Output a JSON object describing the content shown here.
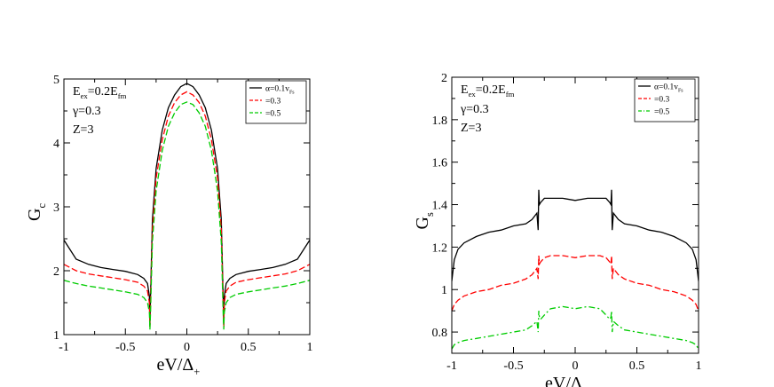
{
  "chart_data": [
    {
      "type": "line",
      "ylabel": "G",
      "ylabel_sub": "c",
      "xlabel": "eV/Δ",
      "xlabel_sub": "+",
      "xlim": [
        -1,
        1
      ],
      "ylim": [
        1,
        5
      ],
      "xticks": [
        -1,
        -0.5,
        0,
        0.5,
        1
      ],
      "xtick_labels": [
        "-1",
        "-0.5",
        "0",
        "0.5",
        "1"
      ],
      "yticks": [
        1,
        2,
        3,
        4,
        5
      ],
      "ytick_labels": [
        "1",
        "2",
        "3",
        "4",
        "5"
      ],
      "params": {
        "line1": {
          "main": "E",
          "sub": "ex",
          "rest": "=0.2E",
          "sub2": "fm"
        },
        "line2": "γ=0.3",
        "line3": "Z=3"
      },
      "legend_position": "top-right",
      "series": [
        {
          "name": "α=0.1v",
          "name_sub": "Fs",
          "color": "#000000",
          "dash": "solid",
          "x": [
            -1,
            -0.9,
            -0.8,
            -0.7,
            -0.6,
            -0.5,
            -0.4,
            -0.35,
            -0.32,
            -0.305,
            -0.3,
            -0.295,
            -0.28,
            -0.25,
            -0.2,
            -0.15,
            -0.1,
            -0.05,
            0,
            0.05,
            0.1,
            0.15,
            0.2,
            0.25,
            0.28,
            0.295,
            0.3,
            0.305,
            0.32,
            0.35,
            0.4,
            0.5,
            0.6,
            0.7,
            0.8,
            0.9,
            1
          ],
          "y": [
            2.48,
            2.18,
            2.1,
            2.05,
            2.02,
            1.99,
            1.94,
            1.88,
            1.8,
            1.6,
            1.15,
            1.6,
            2.8,
            3.6,
            4.2,
            4.55,
            4.75,
            4.88,
            4.93,
            4.88,
            4.75,
            4.55,
            4.2,
            3.6,
            2.8,
            1.6,
            1.15,
            1.6,
            1.8,
            1.88,
            1.94,
            1.99,
            2.02,
            2.05,
            2.1,
            2.18,
            2.48
          ]
        },
        {
          "name": "=0.3",
          "color": "#ff0000",
          "dash": "dashed",
          "x": [
            -1,
            -0.9,
            -0.8,
            -0.7,
            -0.6,
            -0.5,
            -0.4,
            -0.35,
            -0.32,
            -0.305,
            -0.3,
            -0.295,
            -0.28,
            -0.25,
            -0.2,
            -0.15,
            -0.1,
            -0.05,
            0,
            0.05,
            0.1,
            0.15,
            0.2,
            0.25,
            0.28,
            0.295,
            0.3,
            0.305,
            0.32,
            0.35,
            0.4,
            0.5,
            0.6,
            0.7,
            0.8,
            0.9,
            1
          ],
          "y": [
            2.1,
            2.0,
            1.95,
            1.92,
            1.89,
            1.86,
            1.82,
            1.76,
            1.68,
            1.5,
            1.12,
            1.5,
            2.65,
            3.45,
            4.05,
            4.42,
            4.63,
            4.75,
            4.8,
            4.75,
            4.63,
            4.42,
            4.05,
            3.45,
            2.65,
            1.5,
            1.12,
            1.5,
            1.68,
            1.76,
            1.82,
            1.86,
            1.89,
            1.92,
            1.95,
            2.0,
            2.1
          ]
        },
        {
          "name": "=0.5",
          "color": "#00cc00",
          "dash": "dashed",
          "x": [
            -1,
            -0.9,
            -0.8,
            -0.7,
            -0.6,
            -0.5,
            -0.4,
            -0.35,
            -0.32,
            -0.305,
            -0.3,
            -0.295,
            -0.28,
            -0.25,
            -0.2,
            -0.15,
            -0.1,
            -0.05,
            0,
            0.05,
            0.1,
            0.15,
            0.2,
            0.25,
            0.28,
            0.295,
            0.3,
            0.305,
            0.32,
            0.35,
            0.4,
            0.5,
            0.6,
            0.7,
            0.8,
            0.9,
            1
          ],
          "y": [
            1.85,
            1.8,
            1.76,
            1.73,
            1.7,
            1.67,
            1.63,
            1.58,
            1.5,
            1.35,
            1.08,
            1.35,
            2.45,
            3.25,
            3.88,
            4.26,
            4.47,
            4.6,
            4.64,
            4.6,
            4.47,
            4.26,
            3.88,
            3.25,
            2.45,
            1.35,
            1.08,
            1.35,
            1.5,
            1.58,
            1.63,
            1.67,
            1.7,
            1.73,
            1.76,
            1.8,
            1.85
          ]
        }
      ]
    },
    {
      "type": "line",
      "ylabel": "G",
      "ylabel_sub": "s",
      "xlabel": "eV/Δ",
      "xlabel_sub": "+",
      "xlim": [
        -1,
        1
      ],
      "ylim": [
        0.7,
        2
      ],
      "xticks": [
        -1,
        -0.5,
        0,
        0.5,
        1
      ],
      "xtick_labels": [
        "-1",
        "-0.5",
        "0",
        "0.5",
        "1"
      ],
      "yticks": [
        0.8,
        1,
        1.2,
        1.4,
        1.6,
        1.8,
        2
      ],
      "ytick_labels": [
        "0.8",
        "1",
        "1.2",
        "1.4",
        "1.6",
        "1.8",
        "2"
      ],
      "params": {
        "line1": {
          "main": "E",
          "sub": "ex",
          "rest": "=0.2E",
          "sub2": "fm"
        },
        "line2": "γ=0.3",
        "line3": "Z=3"
      },
      "legend_position": "top-right",
      "series": [
        {
          "name": "α=0.1v",
          "name_sub": "Fs",
          "color": "#000000",
          "dash": "solid",
          "x": [
            -1,
            -0.98,
            -0.95,
            -0.9,
            -0.8,
            -0.7,
            -0.6,
            -0.5,
            -0.4,
            -0.35,
            -0.31,
            -0.3,
            -0.295,
            -0.29,
            -0.28,
            -0.25,
            -0.2,
            -0.1,
            0,
            0.1,
            0.2,
            0.25,
            0.28,
            0.29,
            0.295,
            0.3,
            0.31,
            0.35,
            0.4,
            0.5,
            0.6,
            0.7,
            0.8,
            0.9,
            0.95,
            0.98,
            1
          ],
          "y": [
            1.04,
            1.14,
            1.19,
            1.22,
            1.25,
            1.27,
            1.28,
            1.3,
            1.31,
            1.33,
            1.36,
            1.28,
            1.47,
            1.4,
            1.41,
            1.43,
            1.43,
            1.43,
            1.42,
            1.43,
            1.43,
            1.43,
            1.41,
            1.4,
            1.47,
            1.28,
            1.36,
            1.33,
            1.31,
            1.3,
            1.28,
            1.27,
            1.25,
            1.22,
            1.19,
            1.14,
            1.04
          ]
        },
        {
          "name": "=0.3",
          "color": "#ff0000",
          "dash": "dashed",
          "x": [
            -1,
            -0.98,
            -0.95,
            -0.9,
            -0.8,
            -0.7,
            -0.6,
            -0.5,
            -0.4,
            -0.35,
            -0.31,
            -0.3,
            -0.295,
            -0.29,
            -0.28,
            -0.25,
            -0.2,
            -0.1,
            0,
            0.1,
            0.2,
            0.25,
            0.28,
            0.29,
            0.295,
            0.3,
            0.31,
            0.35,
            0.4,
            0.5,
            0.6,
            0.7,
            0.8,
            0.9,
            0.95,
            0.98,
            1
          ],
          "y": [
            0.9,
            0.93,
            0.95,
            0.97,
            0.99,
            1.0,
            1.02,
            1.03,
            1.05,
            1.07,
            1.1,
            1.05,
            1.16,
            1.12,
            1.13,
            1.15,
            1.16,
            1.16,
            1.15,
            1.16,
            1.16,
            1.15,
            1.13,
            1.12,
            1.16,
            1.05,
            1.1,
            1.07,
            1.05,
            1.03,
            1.02,
            1.0,
            0.99,
            0.97,
            0.95,
            0.93,
            0.9
          ]
        },
        {
          "name": "=0.5",
          "color": "#00cc00",
          "dash": "dashdot",
          "x": [
            -1,
            -0.98,
            -0.95,
            -0.9,
            -0.8,
            -0.7,
            -0.6,
            -0.5,
            -0.4,
            -0.35,
            -0.31,
            -0.3,
            -0.295,
            -0.29,
            -0.28,
            -0.25,
            -0.2,
            -0.1,
            0,
            0.1,
            0.2,
            0.25,
            0.28,
            0.29,
            0.295,
            0.3,
            0.31,
            0.35,
            0.4,
            0.5,
            0.6,
            0.7,
            0.8,
            0.9,
            0.95,
            0.98,
            1
          ],
          "y": [
            0.72,
            0.74,
            0.75,
            0.76,
            0.77,
            0.78,
            0.79,
            0.8,
            0.81,
            0.83,
            0.85,
            0.8,
            0.9,
            0.87,
            0.86,
            0.88,
            0.91,
            0.92,
            0.91,
            0.92,
            0.91,
            0.88,
            0.86,
            0.87,
            0.9,
            0.8,
            0.85,
            0.83,
            0.81,
            0.8,
            0.79,
            0.78,
            0.77,
            0.76,
            0.75,
            0.74,
            0.72
          ]
        }
      ]
    }
  ]
}
